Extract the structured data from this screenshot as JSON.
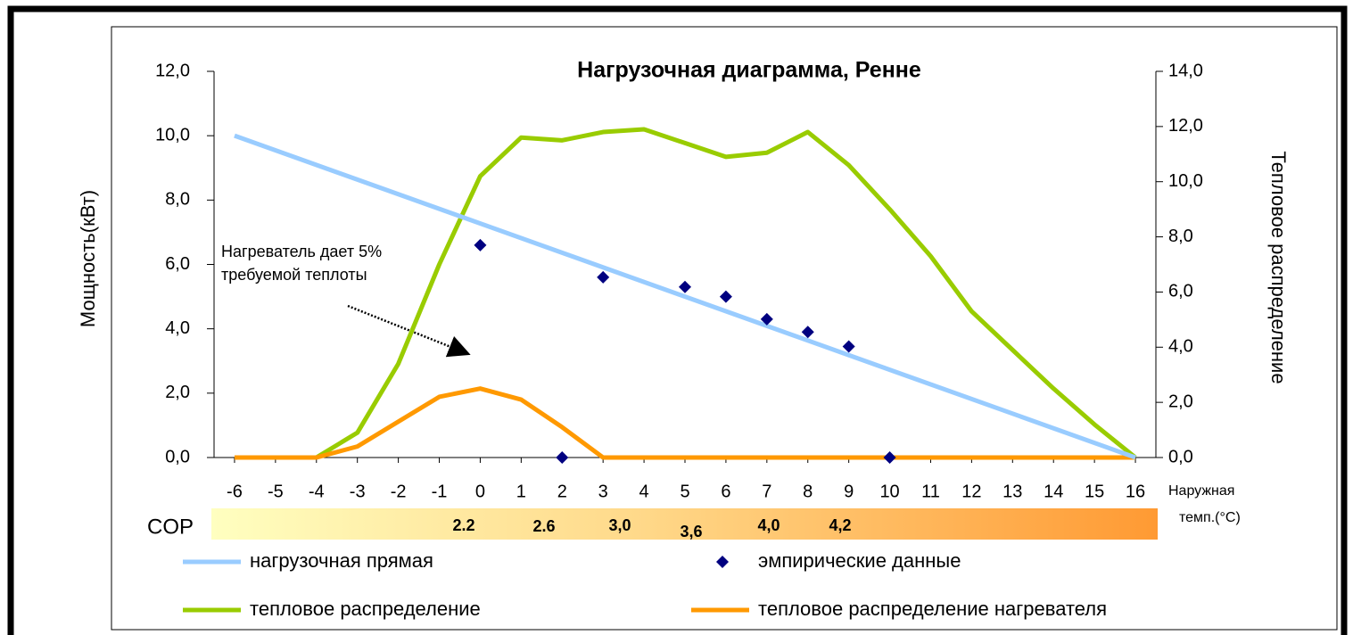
{
  "chart_data": {
    "type": "line",
    "title": "Нагрузочная диаграмма, Ренне",
    "ylabel": "Мощность(кВт)",
    "y2label": "Тепловое распределение",
    "xlabel": [
      "Наружная",
      "темп.(°C)"
    ],
    "annotation": [
      "Нагреватель дает 5%",
      "требуемой теплоты"
    ],
    "xlim": [
      -6.5,
      16.5
    ],
    "xticks": [
      -6,
      -5,
      -4,
      -3,
      -2,
      -1,
      0,
      1,
      2,
      3,
      4,
      5,
      6,
      7,
      8,
      9,
      10,
      11,
      12,
      13,
      14,
      15,
      16
    ],
    "ylim": [
      0,
      12
    ],
    "yticks": [
      {
        "value": 0,
        "label": "0,0"
      },
      {
        "value": 2,
        "label": "2,0"
      },
      {
        "value": 4,
        "label": "4,0"
      },
      {
        "value": 6,
        "label": "6,0"
      },
      {
        "value": 8,
        "label": "8,0"
      },
      {
        "value": 10,
        "label": "10,0"
      },
      {
        "value": 12,
        "label": "12,0"
      }
    ],
    "y2lim": [
      0,
      14
    ],
    "y2ticks": [
      {
        "value": 0,
        "label": "0,0"
      },
      {
        "value": 2,
        "label": "2,0"
      },
      {
        "value": 4,
        "label": "4,0"
      },
      {
        "value": 6,
        "label": "6,0"
      },
      {
        "value": 8,
        "label": "8,0"
      },
      {
        "value": 10,
        "label": "10,0"
      },
      {
        "value": 12,
        "label": "12,0"
      },
      {
        "value": 14,
        "label": "14,0"
      }
    ],
    "series": [
      {
        "name": "нагрузочная прямая",
        "kind": "line",
        "color": "#99ccff",
        "x": [
          -6,
          16
        ],
        "values": [
          10,
          0
        ]
      },
      {
        "name": "эмпирические данные",
        "kind": "scatter",
        "color": "#000080",
        "x": [
          0,
          2,
          3,
          5,
          6,
          7,
          8,
          9,
          10
        ],
        "values": [
          6.6,
          0,
          5.6,
          5.3,
          5.0,
          4.3,
          3.9,
          3.45,
          0
        ]
      },
      {
        "name": "тепловое распределение",
        "kind": "line",
        "axis": "y2",
        "color": "#99cc00",
        "x": [
          -4,
          -3,
          -2,
          -1,
          0,
          1,
          2,
          3,
          4,
          5,
          6,
          7,
          8,
          9,
          10,
          11,
          12,
          13,
          14,
          15,
          16
        ],
        "values": [
          0,
          0.9,
          3.4,
          7.0,
          10.2,
          11.6,
          11.5,
          11.8,
          11.9,
          11.4,
          10.9,
          11.05,
          11.8,
          10.6,
          9.0,
          7.3,
          5.3,
          3.9,
          2.5,
          1.2,
          0
        ]
      },
      {
        "name": "тепловое распределение нагревателя",
        "kind": "line",
        "axis": "y2",
        "color": "#ff9900",
        "x": [
          -6,
          -5,
          -4,
          -3,
          -2,
          -1,
          0,
          1,
          2,
          3,
          4,
          5,
          6,
          7,
          8,
          9,
          10,
          11,
          12,
          13,
          14,
          15,
          16
        ],
        "values": [
          0,
          0,
          0,
          0.4,
          1.3,
          2.2,
          2.5,
          2.1,
          1.1,
          0,
          0,
          0,
          0,
          0,
          0,
          0,
          0,
          0,
          0,
          0,
          0,
          0,
          0
        ]
      }
    ],
    "cop": {
      "label": "COP",
      "values": [
        "2.2",
        "2.6",
        "3,0",
        "3,6",
        "4,0",
        "4,2"
      ]
    }
  }
}
